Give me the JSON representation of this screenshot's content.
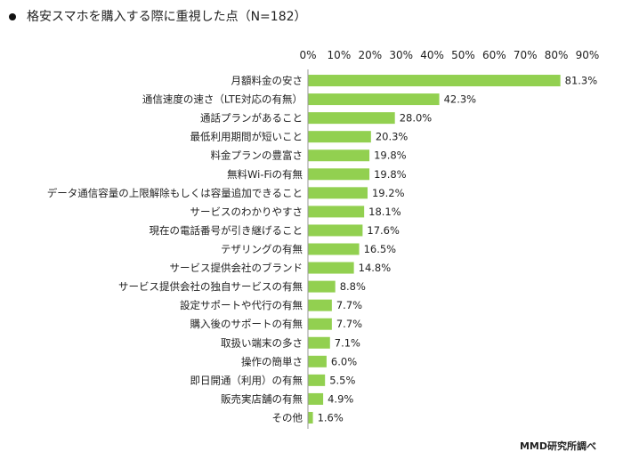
{
  "chart_data": {
    "type": "bar",
    "orientation": "horizontal",
    "title": "格安スマホを購入する際に重視した点（N=182）",
    "source": "MMD研究所調べ",
    "xlim": [
      0,
      90
    ],
    "ticks": [
      "0%",
      "10%",
      "20%",
      "30%",
      "40%",
      "50%",
      "60%",
      "70%",
      "80%",
      "90%"
    ],
    "tick_values": [
      0,
      10,
      20,
      30,
      40,
      50,
      60,
      70,
      80,
      90
    ],
    "grid": false,
    "bar_color": "#92D050",
    "categories": [
      "月額料金の安さ",
      "通信速度の速さ（LTE対応の有無）",
      "通話プランがあること",
      "最低利用期間が短いこと",
      "料金プランの豊富さ",
      "無料Wi-Fiの有無",
      "データ通信容量の上限解除もしくは容量追加できること",
      "サービスのわかりやすさ",
      "現在の電話番号が引き継げること",
      "テザリングの有無",
      "サービス提供会社のブランド",
      "サービス提供会社の独自サービスの有無",
      "設定サポートや代行の有無",
      "購入後のサポートの有無",
      "取扱い端末の多さ",
      "操作の簡単さ",
      "即日開通（利用）の有無",
      "販売実店舗の有無",
      "その他"
    ],
    "values": [
      81.3,
      42.3,
      28.0,
      20.3,
      19.8,
      19.8,
      19.2,
      18.1,
      17.6,
      16.5,
      14.8,
      8.8,
      7.7,
      7.7,
      7.1,
      6.0,
      5.5,
      4.9,
      1.6
    ],
    "value_labels": [
      "81.3%",
      "42.3%",
      "28.0%",
      "20.3%",
      "19.8%",
      "19.8%",
      "19.2%",
      "18.1%",
      "17.6%",
      "16.5%",
      "14.8%",
      "8.8%",
      "7.7%",
      "7.7%",
      "7.1%",
      "6.0%",
      "5.5%",
      "4.9%",
      "1.6%"
    ]
  }
}
